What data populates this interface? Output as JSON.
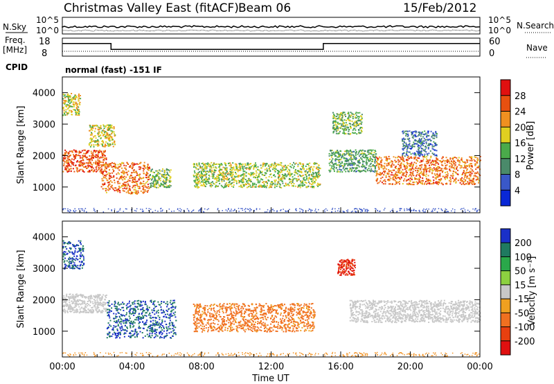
{
  "header": {
    "title": "Christmas Valley East (fitACF)",
    "beam": "Beam 06",
    "date": "15/Feb/2012"
  },
  "labels": {
    "nsky": "N.Sky",
    "nsearch": "N.Search",
    "freq_line1": "Freq.",
    "freq_line2": "[MHz]",
    "nave": "Nave",
    "cpid": "CPID",
    "cpid_value": "normal (fast) -151 IF"
  },
  "noise_panel": {
    "ytick_left": [
      "10^5",
      "10^0"
    ],
    "ytick_right": [
      "10^5",
      "10^0"
    ]
  },
  "freq_panel": {
    "ytick_left": [
      18,
      8
    ],
    "ytick_right": [
      60,
      0
    ],
    "freq_steps": [
      {
        "t0": 0.0,
        "t1": 2.8,
        "mhz": 15.5
      },
      {
        "t0": 2.8,
        "t1": 15.0,
        "mhz": 10.6
      },
      {
        "t0": 15.0,
        "t1": 24.0,
        "mhz": 15.5
      }
    ]
  },
  "chart_data": [
    {
      "type": "heatmap",
      "panel": "power",
      "ylabel": "Slant Range [km]",
      "xlabel": "",
      "ylim": [
        180,
        4500
      ],
      "yticks": [
        1000,
        2000,
        3000,
        4000
      ],
      "colorbar": {
        "label": "Power [dB]",
        "ticks": [
          4,
          8,
          12,
          16,
          20,
          24,
          28
        ],
        "range": [
          0,
          32
        ],
        "colors": [
          "#0a28d6",
          "#3a58c8",
          "#4a8a6a",
          "#4aaa4a",
          "#e0d020",
          "#f09020",
          "#e85010",
          "#e01010"
        ]
      },
      "regions": [
        {
          "t0": 0.0,
          "t1": 1.0,
          "r0": 3300,
          "r1": 4000,
          "value": 18
        },
        {
          "t0": 0.0,
          "t1": 2.5,
          "r0": 1500,
          "r1": 2200,
          "value": 26
        },
        {
          "t0": 1.5,
          "t1": 3.0,
          "r0": 2300,
          "r1": 3000,
          "value": 18
        },
        {
          "t0": 2.2,
          "t1": 5.0,
          "r0": 800,
          "r1": 1800,
          "value": 24
        },
        {
          "t0": 5.0,
          "t1": 6.2,
          "r0": 1000,
          "r1": 1600,
          "value": 14
        },
        {
          "t0": 7.5,
          "t1": 14.8,
          "r0": 1000,
          "r1": 1800,
          "value": 16
        },
        {
          "t0": 15.3,
          "t1": 18.0,
          "r0": 1500,
          "r1": 2200,
          "value": 12
        },
        {
          "t0": 15.5,
          "t1": 17.2,
          "r0": 2700,
          "r1": 3400,
          "value": 14
        },
        {
          "t0": 18.0,
          "t1": 24.0,
          "r0": 1100,
          "r1": 2000,
          "value": 24
        },
        {
          "t0": 19.5,
          "t1": 21.5,
          "r0": 2000,
          "r1": 2800,
          "value": 8
        }
      ]
    },
    {
      "type": "heatmap",
      "panel": "velocity",
      "ylabel": "Slant Range [km]",
      "xlabel": "Time UT",
      "ylim": [
        180,
        4500
      ],
      "yticks": [
        1000,
        2000,
        3000,
        4000
      ],
      "xticks": [
        "00:00",
        "04:00",
        "08:00",
        "12:00",
        "16:00",
        "20:00",
        "00:00"
      ],
      "colorbar": {
        "label": "Velocity [m s⁻¹]",
        "ticks": [
          200,
          100,
          50,
          15,
          -15,
          -50,
          -100,
          -200
        ],
        "colors": [
          "#1a30c8",
          "#1f7a60",
          "#2aa84a",
          "#8cd040",
          "#c8c8c8",
          "#f0a020",
          "#f07020",
          "#e84010",
          "#e01010"
        ]
      },
      "regions": [
        {
          "t0": 0.0,
          "t1": 1.2,
          "r0": 3000,
          "r1": 3900,
          "value": 200
        },
        {
          "t0": 0.0,
          "t1": 2.5,
          "r0": 1600,
          "r1": 2200,
          "value": 0
        },
        {
          "t0": 2.5,
          "t1": 6.5,
          "r0": 800,
          "r1": 2000,
          "value": 200
        },
        {
          "t0": 7.5,
          "t1": 14.5,
          "r0": 1000,
          "r1": 1900,
          "value": -60
        },
        {
          "t0": 15.8,
          "t1": 16.8,
          "r0": 2800,
          "r1": 3300,
          "value": -200
        },
        {
          "t0": 16.5,
          "t1": 24.0,
          "r0": 1300,
          "r1": 2000,
          "value": 0
        }
      ]
    }
  ]
}
